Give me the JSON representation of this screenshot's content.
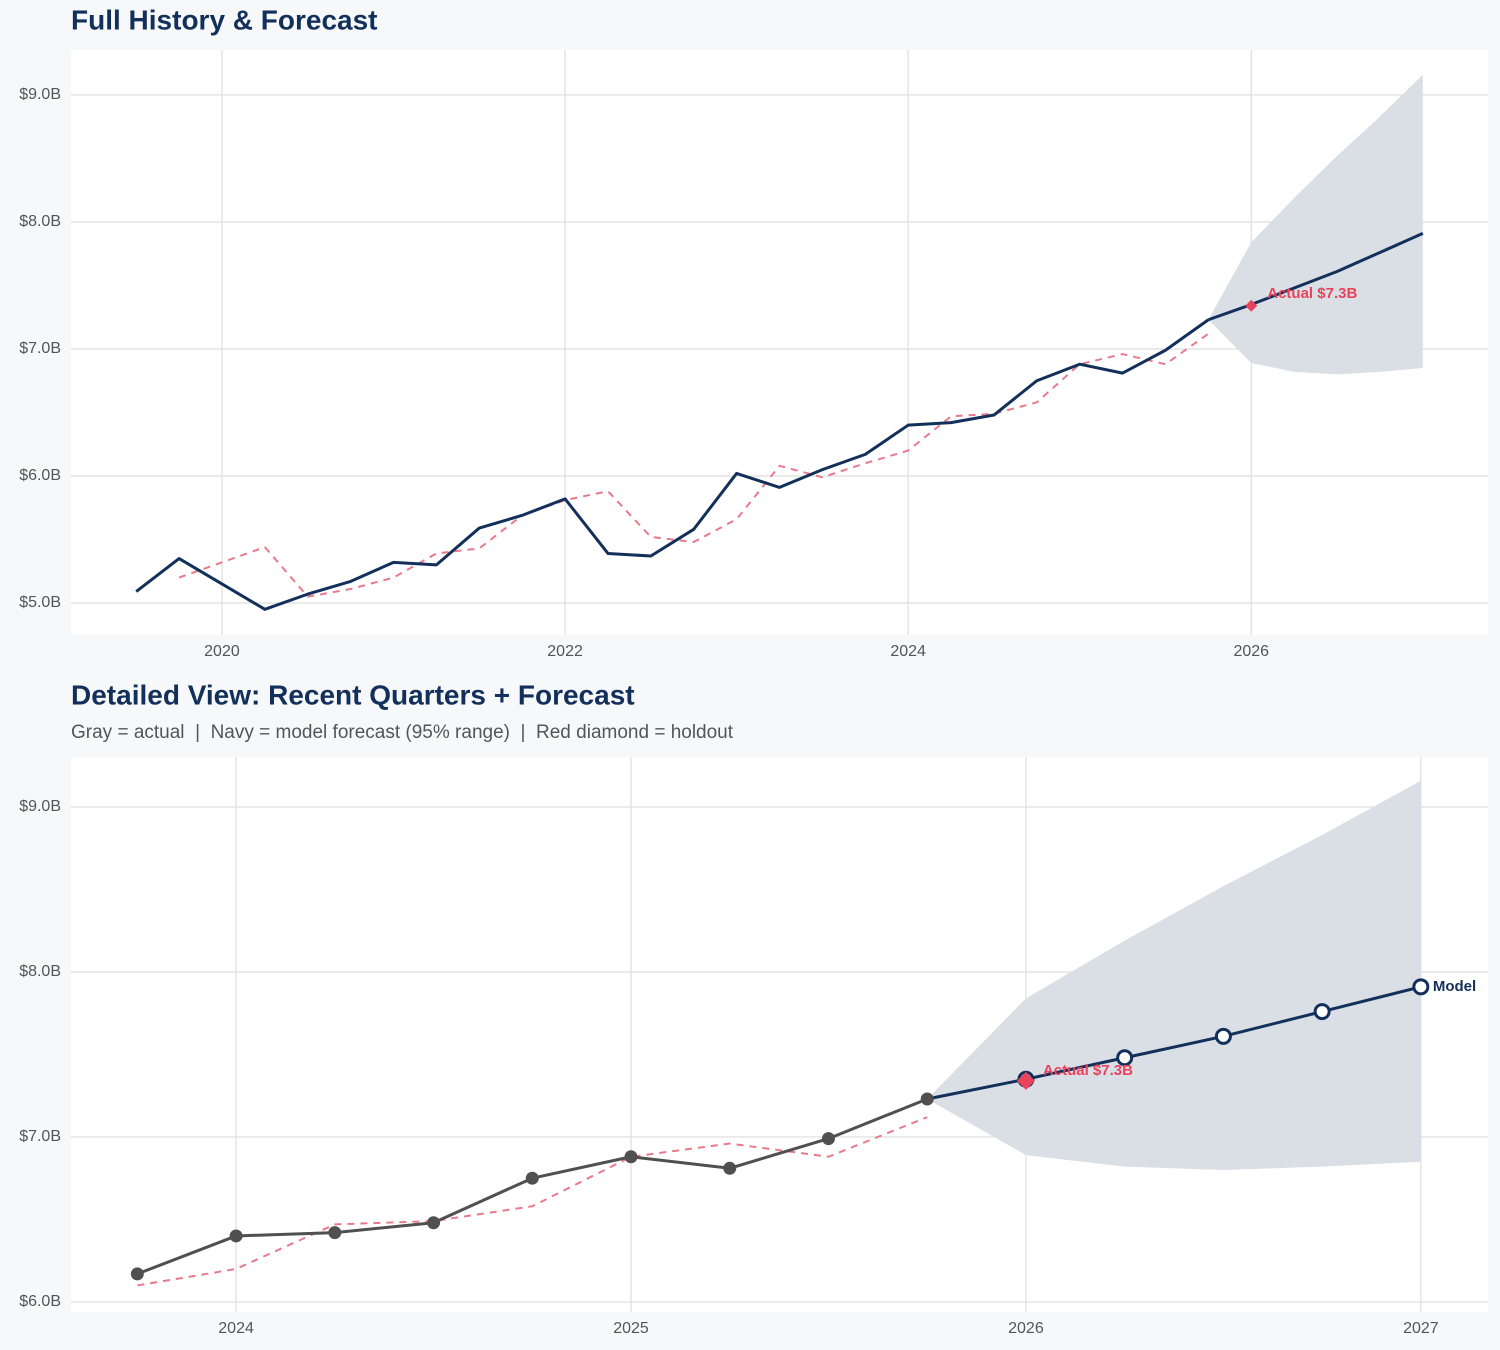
{
  "chart_data": [
    {
      "type": "line",
      "title": "Full History & Forecast",
      "xlim": [
        2019.12,
        2027.38
      ],
      "xticks": [
        2020,
        2022,
        2024,
        2026
      ],
      "ylim": [
        4.748,
        9.354
      ],
      "yticks": [
        {
          "value": 5,
          "label": "$5.0B"
        },
        {
          "value": 6,
          "label": "$6.0B"
        },
        {
          "value": 7,
          "label": "$7.0B"
        },
        {
          "value": 8,
          "label": "$8.0B"
        },
        {
          "value": 9,
          "label": "$9.0B"
        }
      ],
      "grid": true,
      "band": {
        "color": "#dadfe6",
        "x": [
          2025.75,
          2026,
          2026.25,
          2026.5,
          2026.75,
          2027
        ],
        "lower": [
          7.23,
          6.89,
          6.82,
          6.8,
          6.82,
          6.85
        ],
        "upper": [
          7.23,
          7.84,
          8.19,
          8.52,
          8.83,
          9.16
        ]
      },
      "series": [
        {
          "color": "#e87a8a",
          "dashed": true,
          "x": [
            2019.75,
            2020,
            2020.25,
            2020.5,
            2020.75,
            2021,
            2021.25,
            2021.5,
            2021.75,
            2022,
            2022.25,
            2022.5,
            2022.75,
            2023,
            2023.25,
            2023.5,
            2023.75,
            2024,
            2024.25,
            2024.5,
            2024.75,
            2025,
            2025.25,
            2025.5,
            2025.75
          ],
          "values": [
            5.2,
            5.32,
            5.44,
            5.05,
            5.11,
            5.2,
            5.39,
            5.43,
            5.69,
            5.81,
            5.88,
            5.52,
            5.48,
            5.66,
            6.08,
            5.99,
            6.1,
            6.2,
            6.47,
            6.49,
            6.58,
            6.88,
            6.96,
            6.88,
            7.12
          ]
        },
        {
          "color": "#12305a",
          "x": [
            2019.5,
            2019.75,
            2020,
            2020.25,
            2020.5,
            2020.75,
            2021,
            2021.25,
            2021.5,
            2021.75,
            2022,
            2022.25,
            2022.5,
            2022.75,
            2023,
            2023.25,
            2023.5,
            2023.75,
            2024,
            2024.25,
            2024.5,
            2024.75,
            2025,
            2025.25,
            2025.5,
            2025.75
          ],
          "values": [
            5.09,
            5.35,
            5.15,
            4.95,
            5.07,
            5.17,
            5.32,
            5.3,
            5.59,
            5.69,
            5.82,
            5.39,
            5.37,
            5.58,
            6.02,
            5.91,
            6.05,
            6.17,
            6.4,
            6.42,
            6.48,
            6.75,
            6.88,
            6.81,
            6.99,
            7.23
          ]
        },
        {
          "color": "#12305a",
          "x": [
            2025.75,
            2026,
            2026.25,
            2026.5,
            2026.75,
            2027
          ],
          "values": [
            7.23,
            7.35,
            7.48,
            7.61,
            7.76,
            7.91
          ]
        }
      ],
      "holdout": {
        "x": 2026,
        "value": 7.34,
        "label": "Actual $7.3B",
        "color": "#e8435a"
      }
    },
    {
      "type": "line",
      "title": "Detailed View: Recent Quarters + Forecast",
      "subtitle": "Gray = actual  |  Navy = model forecast (95% range)  |  Red diamond = holdout",
      "xlim": [
        2023.582,
        2027.17
      ],
      "xticks": [
        2024,
        2025,
        2026,
        2027
      ],
      "ylim": [
        5.939,
        9.303
      ],
      "yticks": [
        {
          "value": 6,
          "label": "$6.0B"
        },
        {
          "value": 7,
          "label": "$7.0B"
        },
        {
          "value": 8,
          "label": "$8.0B"
        },
        {
          "value": 9,
          "label": "$9.0B"
        }
      ],
      "grid": true,
      "band": {
        "color": "#dadfe6",
        "x": [
          2025.75,
          2026,
          2026.25,
          2026.5,
          2026.75,
          2027
        ],
        "lower": [
          7.23,
          6.89,
          6.82,
          6.8,
          6.82,
          6.85
        ],
        "upper": [
          7.23,
          7.84,
          8.19,
          8.52,
          8.83,
          9.16
        ]
      },
      "series": [
        {
          "color": "#e87a8a",
          "dashed": true,
          "x": [
            2023.75,
            2024,
            2024.25,
            2024.5,
            2024.75,
            2025,
            2025.25,
            2025.5,
            2025.75
          ],
          "values": [
            6.1,
            6.2,
            6.47,
            6.49,
            6.58,
            6.88,
            6.96,
            6.88,
            7.12
          ]
        },
        {
          "color": "#505050",
          "marker": "filled",
          "x": [
            2023.75,
            2024,
            2024.25,
            2024.5,
            2024.75,
            2025,
            2025.25,
            2025.5,
            2025.75
          ],
          "values": [
            6.17,
            6.4,
            6.42,
            6.48,
            6.75,
            6.88,
            6.81,
            6.99,
            7.23
          ]
        },
        {
          "color": "#12305a",
          "marker": "open",
          "end_label": "Model",
          "x": [
            2025.75,
            2026,
            2026.25,
            2026.5,
            2026.75,
            2027
          ],
          "values": [
            7.23,
            7.35,
            7.48,
            7.61,
            7.76,
            7.91
          ]
        }
      ],
      "holdout": {
        "x": 2026,
        "value": 7.34,
        "label": "Actual $7.3B",
        "color": "#e8435a"
      }
    }
  ]
}
